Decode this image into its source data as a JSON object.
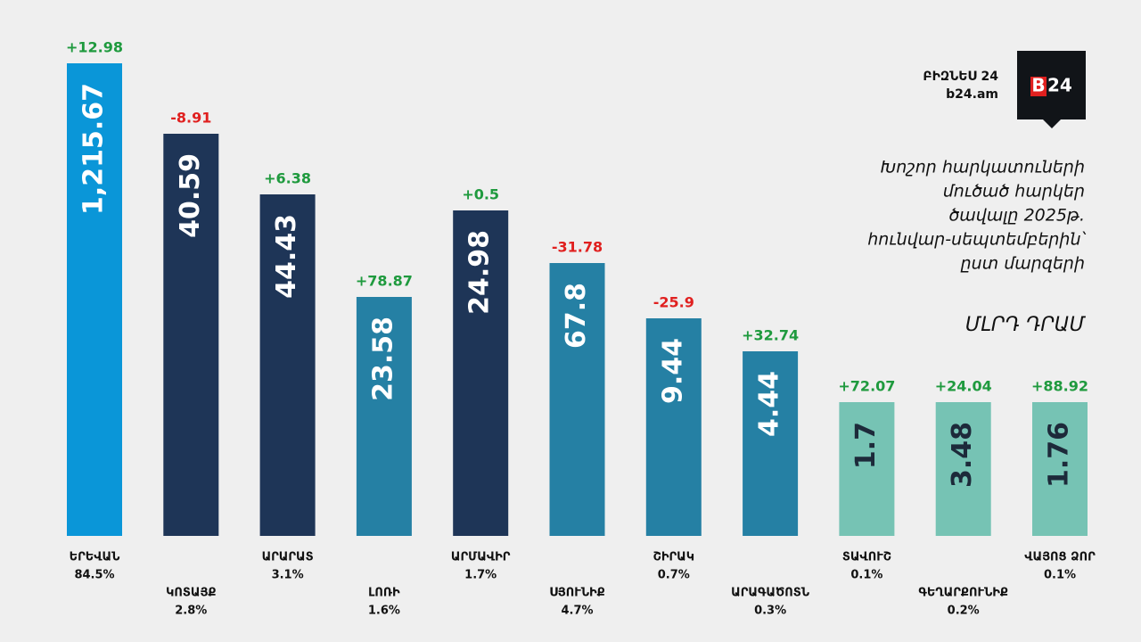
{
  "chart_data": {
    "type": "bar",
    "title": [
      "Խոշոր հարկատուների",
      "մուծած հարկեր",
      "ծավալը 2025թ.",
      "հունվար-սեպտեմբերին՝",
      "ըստ մարզերի"
    ],
    "unit": "ՄԼՐԴ ԴՐԱՄ",
    "brand": "ԲԻԶՆԵՍ 24",
    "site": "b24.am",
    "logo": [
      "B",
      "24"
    ],
    "categories": [
      "ԵՐԵՎԱՆ",
      "ԿՈՏԱՅՔ",
      "ԱՐԱՐԱՏ",
      "ԼՈՌԻ",
      "ԱՐՄԱՎԻՐ",
      "ՍՅՈՒՆԻՔ",
      "ՇԻՐԱԿ",
      "ԱՐԱԳԱԾՈՏՆ",
      "ՏԱՎՈՒՇ",
      "ԳԵՂԱՐՔՈՒՆԻՔ",
      "ՎԱՅՈՑ ՁՈՐ"
    ],
    "values": [
      1215.67,
      40.59,
      44.43,
      23.58,
      24.98,
      67.8,
      9.44,
      4.44,
      1.7,
      3.48,
      1.76
    ],
    "value_labels": [
      "1,215.67",
      "40.59",
      "44.43",
      "23.58",
      "24.98",
      "67.8",
      "9.44",
      "4.44",
      "1.7",
      "3.48",
      "1.76"
    ],
    "colors": [
      "#0a96d8",
      "#1e3557",
      "#1e3557",
      "#2580a4",
      "#1e3557",
      "#2580a4",
      "#2580a4",
      "#2580a4",
      "#76c3b4",
      "#76c3b4",
      "#76c3b4"
    ],
    "changes": [
      12.98,
      -8.91,
      6.38,
      78.87,
      0.5,
      -31.78,
      -25.9,
      32.74,
      72.07,
      24.04,
      88.92
    ],
    "change_labels": [
      "+12.98",
      "-8.91",
      "+6.38",
      "+78.87",
      "+0.5",
      "-31.78",
      "-25.9",
      "+32.74",
      "+72.07",
      "+24.04",
      "+88.92"
    ],
    "positive_color": "#1f9a3e",
    "negative_color": "#e0201f",
    "shares": [
      84.5,
      2.8,
      3.1,
      1.6,
      1.7,
      4.7,
      0.7,
      0.3,
      0.1,
      0.2,
      0.1
    ],
    "share_labels": [
      "84.5%",
      "2.8%",
      "3.1%",
      "1.6%",
      "1.7%",
      "4.7%",
      "0.7%",
      "0.3%",
      "0.1%",
      "0.2%",
      "0.1%"
    ]
  }
}
